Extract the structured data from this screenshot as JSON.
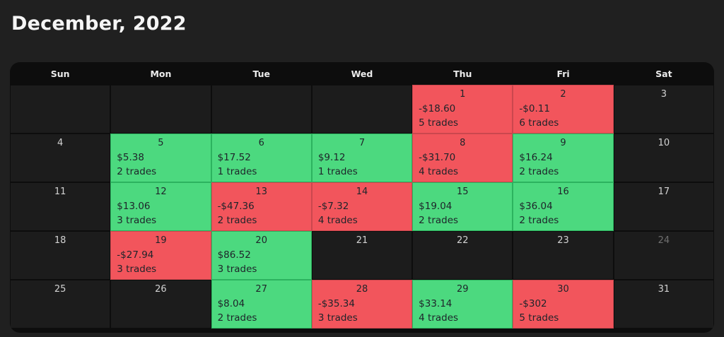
{
  "page": {
    "title": "December, 2022"
  },
  "calendar": {
    "day_headers": [
      "Sun",
      "Mon",
      "Tue",
      "Wed",
      "Thu",
      "Fri",
      "Sat"
    ],
    "colors": {
      "win": "#4cd97f",
      "win_border": "#2cb35f",
      "loss": "#f2555c",
      "loss_border": "#cb474e"
    },
    "weeks": [
      [
        {
          "type": "blank"
        },
        {
          "type": "blank"
        },
        {
          "type": "blank"
        },
        {
          "type": "blank"
        },
        {
          "day": "1",
          "pnl": "-$18.60",
          "trades": "5 trades",
          "type": "loss"
        },
        {
          "day": "2",
          "pnl": "-$0.11",
          "trades": "6 trades",
          "type": "loss"
        },
        {
          "day": "3",
          "type": "empty"
        }
      ],
      [
        {
          "day": "4",
          "type": "empty"
        },
        {
          "day": "5",
          "pnl": "$5.38",
          "trades": "2 trades",
          "type": "win"
        },
        {
          "day": "6",
          "pnl": "$17.52",
          "trades": "1 trades",
          "type": "win"
        },
        {
          "day": "7",
          "pnl": "$9.12",
          "trades": "1 trades",
          "type": "win"
        },
        {
          "day": "8",
          "pnl": "-$31.70",
          "trades": "4 trades",
          "type": "loss"
        },
        {
          "day": "9",
          "pnl": "$16.24",
          "trades": "2 trades",
          "type": "win"
        },
        {
          "day": "10",
          "type": "empty"
        }
      ],
      [
        {
          "day": "11",
          "type": "empty"
        },
        {
          "day": "12",
          "pnl": "$13.06",
          "trades": "3 trades",
          "type": "win"
        },
        {
          "day": "13",
          "pnl": "-$47.36",
          "trades": "2 trades",
          "type": "loss"
        },
        {
          "day": "14",
          "pnl": "-$7.32",
          "trades": "4 trades",
          "type": "loss"
        },
        {
          "day": "15",
          "pnl": "$19.04",
          "trades": "2 trades",
          "type": "win"
        },
        {
          "day": "16",
          "pnl": "$36.04",
          "trades": "2 trades",
          "type": "win"
        },
        {
          "day": "17",
          "type": "empty"
        }
      ],
      [
        {
          "day": "18",
          "type": "empty"
        },
        {
          "day": "19",
          "pnl": "-$27.94",
          "trades": "3 trades",
          "type": "loss"
        },
        {
          "day": "20",
          "pnl": "$86.52",
          "trades": "3 trades",
          "type": "win"
        },
        {
          "day": "21",
          "type": "empty"
        },
        {
          "day": "22",
          "type": "empty"
        },
        {
          "day": "23",
          "type": "empty"
        },
        {
          "day": "24",
          "type": "empty",
          "muted": true
        }
      ],
      [
        {
          "day": "25",
          "type": "empty"
        },
        {
          "day": "26",
          "type": "empty"
        },
        {
          "day": "27",
          "pnl": "$8.04",
          "trades": "2 trades",
          "type": "win"
        },
        {
          "day": "28",
          "pnl": "-$35.34",
          "trades": "3 trades",
          "type": "loss"
        },
        {
          "day": "29",
          "pnl": "$33.14",
          "trades": "4 trades",
          "type": "win"
        },
        {
          "day": "30",
          "pnl": "-$302",
          "trades": "5 trades",
          "type": "loss"
        },
        {
          "day": "31",
          "type": "empty"
        }
      ]
    ]
  }
}
